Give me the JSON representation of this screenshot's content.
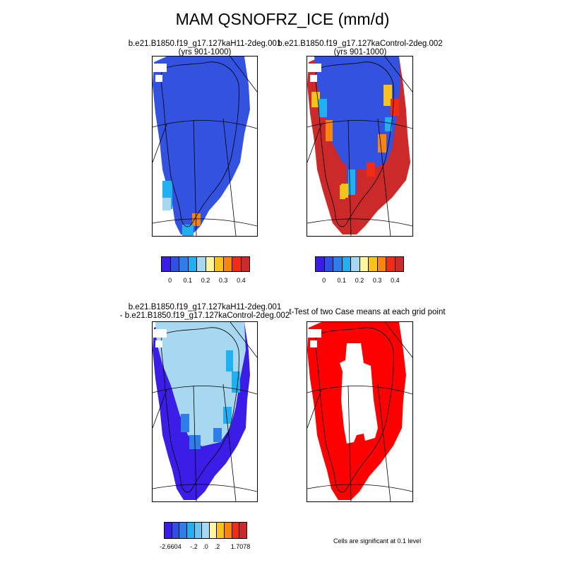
{
  "title": "MAM QSNOFRZ_ICE (mm/d)",
  "panels": {
    "top_left": {
      "line1": "b.e21.B1850.f19_g17.127kaH11-2deg.001",
      "line2": "(yrs 901-1000)"
    },
    "top_right": {
      "line1": "b.e21.B1850.f19_g17.127kaControl-2deg.002",
      "line2": "(yrs 901-1000)"
    },
    "bottom_left": {
      "line1": "b.e21.B1850.f19_g17.127kaH11-2deg.001",
      "line2": "- b.e21.B1850.f19_g17.127kaControl-2deg.002"
    },
    "bottom_right": {
      "line1": "t-Test of two Case means at each grid point"
    }
  },
  "colorbar_top": {
    "colors": [
      "#3a1ee8",
      "#2f50e6",
      "#2f7de8",
      "#21b0ef",
      "#a8d8f0",
      "#fff7a0",
      "#f7c21c",
      "#f98510",
      "#f22c14",
      "#cc2a2a"
    ],
    "ticks": [
      "0",
      "0.1",
      "0.2",
      "0.3",
      "0.4"
    ]
  },
  "colorbar_bottom": {
    "colors": [
      "#3a1ee8",
      "#2f50e6",
      "#2f7de8",
      "#21b0ef",
      "#6cc4ee",
      "#a8d8f0",
      "#fff7a0",
      "#f7c21c",
      "#f98510",
      "#f22c14",
      "#cc2a2a"
    ],
    "ticks": [
      "-2.6604",
      "-.2",
      ".0",
      ".2",
      "1.7078"
    ]
  },
  "significance_note": "Cells are significant at 0.1 level",
  "map_colors": {
    "blue": "#3352e0",
    "light_blue": "#a8d8f0",
    "cyan": "#21b0ef",
    "dark_blue": "#3a1ee8",
    "dark_red": "#cc2a2a",
    "red": "#ff0000",
    "orange": "#f98510",
    "yellow": "#f7c21c"
  }
}
